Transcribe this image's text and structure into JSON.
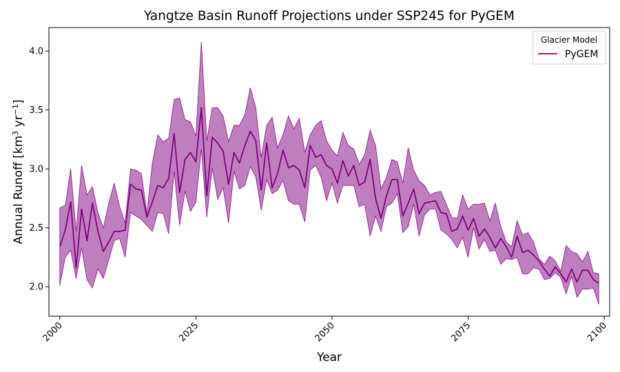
{
  "chart_data": {
    "type": "line",
    "title": "Yangtze Basin Runoff Projections under SSP245 for PyGEM",
    "xlabel": "Year",
    "ylabel": "Annual Runoff [km",
    "ylabel_sup1": "3",
    "ylabel_mid": " yr",
    "ylabel_sup2": "−1",
    "ylabel_end": "]",
    "xlim": [
      1998,
      2101
    ],
    "ylim": [
      1.75,
      4.2
    ],
    "xticks": [
      2000,
      2025,
      2050,
      2075,
      2100
    ],
    "yticks": [
      2.0,
      2.5,
      3.0,
      3.5,
      4.0
    ],
    "xtick_labels": [
      "2000",
      "2025",
      "2050",
      "2075",
      "2100"
    ],
    "ytick_labels": [
      "2.0",
      "2.5",
      "3.0",
      "3.5",
      "4.0"
    ],
    "legend": {
      "title": "Glacier Model",
      "placement": "top-right"
    },
    "series": [
      {
        "name": "PyGEM",
        "color": "#800080",
        "band_color": "#800080",
        "x": [
          2000,
          2001,
          2002,
          2003,
          2004,
          2005,
          2006,
          2007,
          2008,
          2009,
          2010,
          2011,
          2012,
          2013,
          2014,
          2015,
          2016,
          2017,
          2018,
          2019,
          2020,
          2021,
          2022,
          2023,
          2024,
          2025,
          2026,
          2027,
          2028,
          2029,
          2030,
          2031,
          2032,
          2033,
          2034,
          2035,
          2036,
          2037,
          2038,
          2039,
          2040,
          2041,
          2042,
          2043,
          2044,
          2045,
          2046,
          2047,
          2048,
          2049,
          2050,
          2051,
          2052,
          2053,
          2054,
          2055,
          2056,
          2057,
          2058,
          2059,
          2060,
          2061,
          2062,
          2063,
          2064,
          2065,
          2066,
          2067,
          2068,
          2069,
          2070,
          2071,
          2072,
          2073,
          2074,
          2075,
          2076,
          2077,
          2078,
          2079,
          2080,
          2081,
          2082,
          2083,
          2084,
          2085,
          2086,
          2087,
          2088,
          2089,
          2090,
          2091,
          2092,
          2093,
          2094,
          2095,
          2096,
          2097,
          2098,
          2099
        ],
        "mean": [
          2.34,
          2.48,
          2.72,
          2.16,
          2.66,
          2.39,
          2.71,
          2.47,
          2.3,
          2.38,
          2.47,
          2.47,
          2.48,
          2.87,
          2.83,
          2.82,
          2.59,
          2.72,
          2.86,
          2.84,
          2.92,
          3.3,
          2.8,
          3.08,
          3.14,
          3.06,
          3.52,
          2.77,
          3.27,
          3.22,
          3.15,
          2.87,
          3.14,
          3.05,
          3.2,
          3.32,
          3.24,
          2.82,
          3.22,
          2.84,
          2.96,
          3.16,
          3.01,
          3.03,
          2.99,
          2.84,
          3.2,
          3.1,
          3.12,
          3.03,
          3.0,
          2.88,
          3.07,
          2.94,
          3.03,
          2.86,
          2.89,
          3.08,
          2.75,
          2.58,
          2.77,
          2.91,
          2.91,
          2.6,
          2.71,
          2.83,
          2.62,
          2.71,
          2.72,
          2.73,
          2.63,
          2.62,
          2.47,
          2.49,
          2.6,
          2.48,
          2.58,
          2.43,
          2.49,
          2.42,
          2.33,
          2.41,
          2.34,
          2.25,
          2.43,
          2.29,
          2.31,
          2.27,
          2.22,
          2.15,
          2.09,
          2.17,
          2.11,
          2.04,
          2.15,
          2.04,
          2.14,
          2.14,
          2.06,
          2.03
        ],
        "upper": [
          2.67,
          2.69,
          3.0,
          2.47,
          3.03,
          2.78,
          2.85,
          2.63,
          2.5,
          2.71,
          2.88,
          2.68,
          2.54,
          3.0,
          2.99,
          2.96,
          2.62,
          3.05,
          3.29,
          3.23,
          3.26,
          3.59,
          3.6,
          3.42,
          3.4,
          3.28,
          4.08,
          3.24,
          3.52,
          3.52,
          3.45,
          3.23,
          3.37,
          3.37,
          3.46,
          3.69,
          3.52,
          3.1,
          3.37,
          3.44,
          3.18,
          3.29,
          3.45,
          3.34,
          3.43,
          3.14,
          3.29,
          3.37,
          3.41,
          3.24,
          3.16,
          3.11,
          3.31,
          3.2,
          3.17,
          3.04,
          3.12,
          3.33,
          3.2,
          2.83,
          2.93,
          3.08,
          3.06,
          2.88,
          3.18,
          2.99,
          2.9,
          2.86,
          2.78,
          2.8,
          2.81,
          2.7,
          2.59,
          2.58,
          2.78,
          2.66,
          2.7,
          2.7,
          2.71,
          2.56,
          2.71,
          2.51,
          2.38,
          2.34,
          2.56,
          2.44,
          2.46,
          2.38,
          2.24,
          2.19,
          2.26,
          2.22,
          2.13,
          2.35,
          2.3,
          2.28,
          2.21,
          2.3,
          2.12,
          2.11
        ],
        "lower": [
          2.01,
          2.25,
          2.31,
          2.07,
          2.33,
          2.06,
          1.99,
          2.15,
          2.07,
          2.23,
          2.39,
          2.41,
          2.25,
          2.63,
          2.6,
          2.57,
          2.52,
          2.47,
          2.63,
          2.62,
          2.45,
          2.98,
          2.52,
          2.81,
          2.64,
          2.72,
          3.17,
          2.59,
          3.01,
          2.74,
          2.84,
          2.54,
          2.98,
          2.83,
          2.86,
          3.02,
          2.93,
          2.65,
          2.91,
          2.79,
          2.82,
          2.9,
          2.73,
          2.7,
          2.7,
          2.55,
          2.99,
          3.03,
          2.93,
          2.73,
          2.88,
          2.71,
          2.86,
          2.86,
          2.86,
          2.68,
          2.7,
          2.43,
          2.6,
          2.47,
          2.68,
          2.71,
          2.79,
          2.46,
          2.51,
          2.7,
          2.43,
          2.61,
          2.66,
          2.66,
          2.48,
          2.45,
          2.4,
          2.33,
          2.42,
          2.25,
          2.5,
          2.32,
          2.4,
          2.3,
          2.31,
          2.19,
          2.24,
          2.23,
          2.25,
          2.11,
          2.11,
          2.16,
          2.15,
          2.06,
          2.07,
          2.12,
          2.08,
          1.94,
          2.09,
          1.91,
          1.98,
          1.98,
          1.99,
          1.85
        ]
      }
    ]
  }
}
